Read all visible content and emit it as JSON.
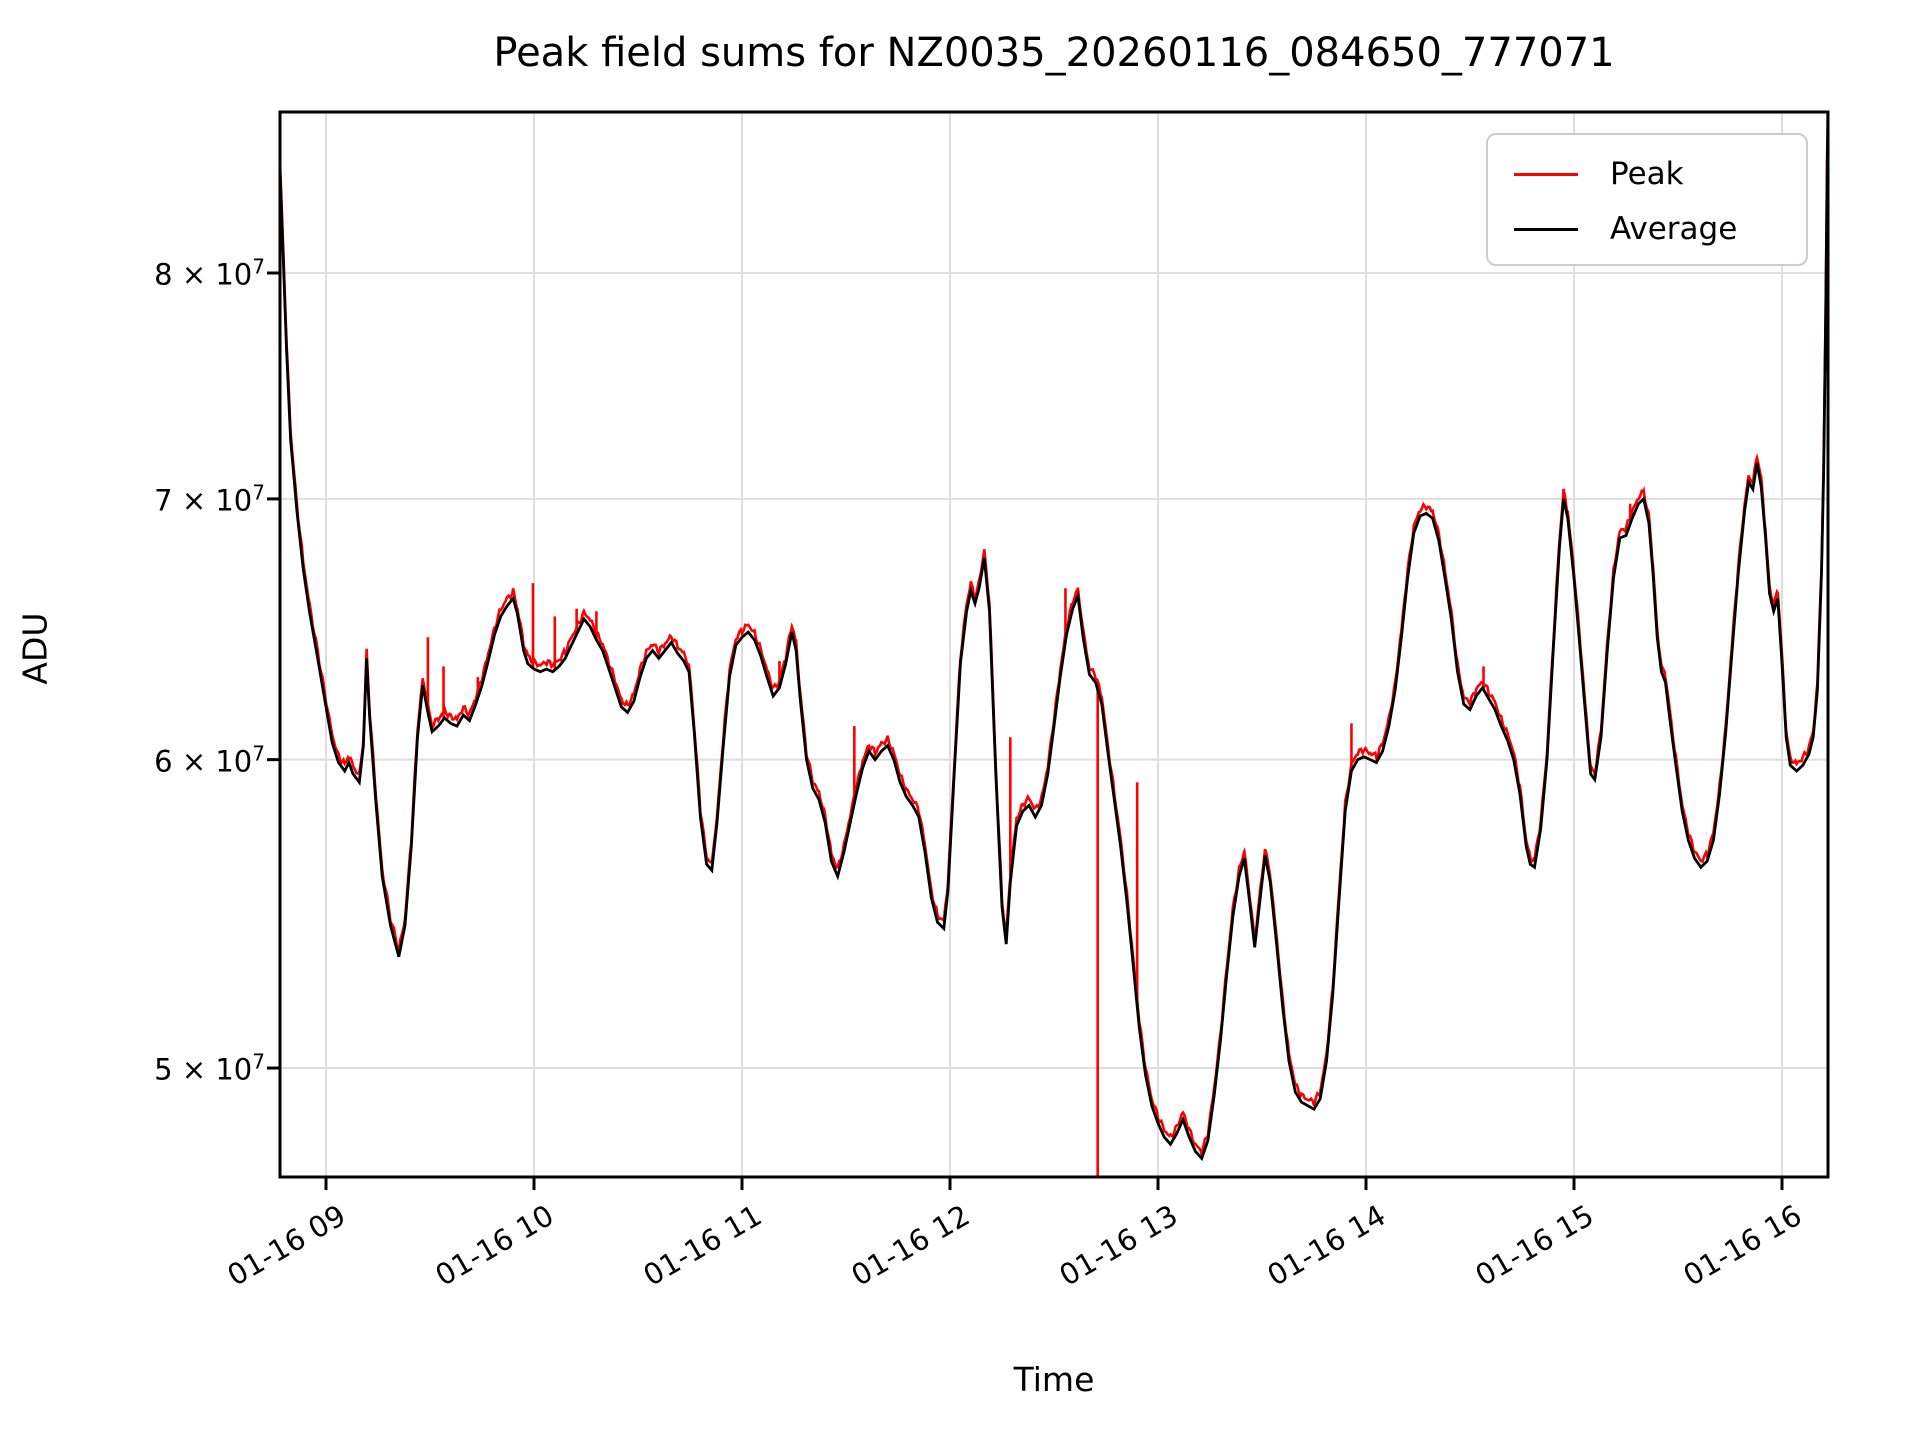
{
  "title": "Peak field sums for NZ0035_20260116_084650_777071",
  "xlabel": "Time",
  "ylabel": "ADU",
  "legend": {
    "entries": [
      {
        "label": "Peak",
        "color": "#ff0000"
      },
      {
        "label": "Average",
        "color": "#000000"
      }
    ]
  },
  "colors": {
    "peak": "#ff0000",
    "average": "#000000",
    "grid": "#dedede",
    "spine": "#000000",
    "legend_border": "#cccccc"
  },
  "chart_data": {
    "type": "line",
    "title": "Peak field sums for NZ0035_20260116_084650_777071",
    "xlabel": "Time",
    "ylabel": "ADU",
    "y_scale": "log",
    "ylim": [
      47200000,
      87900000
    ],
    "grid": true,
    "legend_position": "upper right",
    "x_tick_labels": [
      "01-16 09",
      "01-16 10",
      "01-16 11",
      "01-16 12",
      "01-16 13",
      "01-16 14",
      "01-16 15",
      "01-16 16"
    ],
    "x_tick_hours": [
      9,
      10,
      11,
      12,
      13,
      14,
      15,
      16
    ],
    "y_ticks": [
      {
        "mantissa": "5",
        "exp": "7",
        "value_e7": 5
      },
      {
        "mantissa": "6",
        "exp": "7",
        "value_e7": 6
      },
      {
        "mantissa": "7",
        "exp": "7",
        "value_e7": 7
      },
      {
        "mantissa": "8",
        "exp": "7",
        "value_e7": 8
      }
    ],
    "series": [
      {
        "name": "Peak",
        "color": "#ff0000",
        "note": "average plus small positive fuzz and glitch spikes"
      },
      {
        "name": "Average",
        "color": "#000000"
      }
    ],
    "average_points_t_hours_v_e7": [
      [
        8.78,
        8.48
      ],
      [
        8.79,
        8.2
      ],
      [
        8.81,
        7.65
      ],
      [
        8.83,
        7.25
      ],
      [
        8.86,
        6.95
      ],
      [
        8.89,
        6.72
      ],
      [
        8.92,
        6.55
      ],
      [
        8.96,
        6.37
      ],
      [
        9.0,
        6.19
      ],
      [
        9.03,
        6.06
      ],
      [
        9.06,
        5.99
      ],
      [
        9.09,
        5.96
      ],
      [
        9.11,
        5.99
      ],
      [
        9.13,
        5.95
      ],
      [
        9.16,
        5.92
      ],
      [
        9.18,
        6.05
      ],
      [
        9.195,
        6.37
      ],
      [
        9.21,
        6.15
      ],
      [
        9.24,
        5.85
      ],
      [
        9.27,
        5.6
      ],
      [
        9.31,
        5.44
      ],
      [
        9.35,
        5.34
      ],
      [
        9.38,
        5.44
      ],
      [
        9.41,
        5.7
      ],
      [
        9.44,
        6.08
      ],
      [
        9.465,
        6.27
      ],
      [
        9.49,
        6.17
      ],
      [
        9.51,
        6.1
      ],
      [
        9.54,
        6.12
      ],
      [
        9.57,
        6.15
      ],
      [
        9.6,
        6.13
      ],
      [
        9.63,
        6.12
      ],
      [
        9.66,
        6.16
      ],
      [
        9.69,
        6.14
      ],
      [
        9.72,
        6.2
      ],
      [
        9.75,
        6.27
      ],
      [
        9.78,
        6.36
      ],
      [
        9.81,
        6.46
      ],
      [
        9.84,
        6.53
      ],
      [
        9.87,
        6.57
      ],
      [
        9.9,
        6.6
      ],
      [
        9.92,
        6.54
      ],
      [
        9.95,
        6.4
      ],
      [
        9.97,
        6.35
      ],
      [
        10.0,
        6.33
      ],
      [
        10.03,
        6.32
      ],
      [
        10.06,
        6.33
      ],
      [
        10.09,
        6.32
      ],
      [
        10.12,
        6.34
      ],
      [
        10.15,
        6.37
      ],
      [
        10.18,
        6.42
      ],
      [
        10.21,
        6.47
      ],
      [
        10.24,
        6.52
      ],
      [
        10.27,
        6.49
      ],
      [
        10.3,
        6.44
      ],
      [
        10.33,
        6.4
      ],
      [
        10.36,
        6.33
      ],
      [
        10.39,
        6.26
      ],
      [
        10.42,
        6.19
      ],
      [
        10.45,
        6.17
      ],
      [
        10.48,
        6.21
      ],
      [
        10.51,
        6.3
      ],
      [
        10.54,
        6.37
      ],
      [
        10.57,
        6.4
      ],
      [
        10.6,
        6.37
      ],
      [
        10.63,
        6.4
      ],
      [
        10.66,
        6.43
      ],
      [
        10.69,
        6.39
      ],
      [
        10.72,
        6.36
      ],
      [
        10.745,
        6.32
      ],
      [
        10.77,
        6.1
      ],
      [
        10.8,
        5.8
      ],
      [
        10.83,
        5.64
      ],
      [
        10.855,
        5.62
      ],
      [
        10.88,
        5.78
      ],
      [
        10.91,
        6.05
      ],
      [
        10.94,
        6.3
      ],
      [
        10.97,
        6.42
      ],
      [
        11.0,
        6.45
      ],
      [
        11.03,
        6.47
      ],
      [
        11.06,
        6.44
      ],
      [
        11.09,
        6.38
      ],
      [
        11.12,
        6.3
      ],
      [
        11.15,
        6.23
      ],
      [
        11.18,
        6.26
      ],
      [
        11.21,
        6.35
      ],
      [
        11.24,
        6.47
      ],
      [
        11.26,
        6.4
      ],
      [
        11.28,
        6.22
      ],
      [
        11.31,
        6.0
      ],
      [
        11.34,
        5.9
      ],
      [
        11.37,
        5.86
      ],
      [
        11.4,
        5.78
      ],
      [
        11.43,
        5.65
      ],
      [
        11.46,
        5.6
      ],
      [
        11.49,
        5.68
      ],
      [
        11.52,
        5.78
      ],
      [
        11.55,
        5.88
      ],
      [
        11.58,
        5.97
      ],
      [
        11.61,
        6.03
      ],
      [
        11.64,
        6.0
      ],
      [
        11.67,
        6.03
      ],
      [
        11.7,
        6.05
      ],
      [
        11.73,
        6.0
      ],
      [
        11.76,
        5.92
      ],
      [
        11.79,
        5.87
      ],
      [
        11.82,
        5.84
      ],
      [
        11.85,
        5.8
      ],
      [
        11.88,
        5.68
      ],
      [
        11.91,
        5.53
      ],
      [
        11.94,
        5.45
      ],
      [
        11.97,
        5.43
      ],
      [
        11.99,
        5.55
      ],
      [
        12.02,
        5.95
      ],
      [
        12.05,
        6.35
      ],
      [
        12.08,
        6.55
      ],
      [
        12.1,
        6.63
      ],
      [
        12.12,
        6.58
      ],
      [
        12.14,
        6.64
      ],
      [
        12.165,
        6.76
      ],
      [
        12.19,
        6.55
      ],
      [
        12.22,
        5.95
      ],
      [
        12.25,
        5.5
      ],
      [
        12.27,
        5.38
      ],
      [
        12.29,
        5.58
      ],
      [
        12.32,
        5.77
      ],
      [
        12.35,
        5.82
      ],
      [
        12.38,
        5.84
      ],
      [
        12.41,
        5.8
      ],
      [
        12.44,
        5.84
      ],
      [
        12.47,
        5.95
      ],
      [
        12.5,
        6.12
      ],
      [
        12.53,
        6.3
      ],
      [
        12.56,
        6.46
      ],
      [
        12.59,
        6.56
      ],
      [
        12.615,
        6.61
      ],
      [
        12.64,
        6.45
      ],
      [
        12.67,
        6.31
      ],
      [
        12.7,
        6.28
      ],
      [
        12.73,
        6.2
      ],
      [
        12.76,
        6.02
      ],
      [
        12.79,
        5.86
      ],
      [
        12.82,
        5.7
      ],
      [
        12.85,
        5.52
      ],
      [
        12.88,
        5.32
      ],
      [
        12.91,
        5.12
      ],
      [
        12.94,
        4.98
      ],
      [
        12.97,
        4.89
      ],
      [
        13.0,
        4.84
      ],
      [
        13.03,
        4.8
      ],
      [
        13.06,
        4.78
      ],
      [
        13.09,
        4.81
      ],
      [
        13.12,
        4.85
      ],
      [
        13.15,
        4.8
      ],
      [
        13.18,
        4.76
      ],
      [
        13.21,
        4.74
      ],
      [
        13.24,
        4.79
      ],
      [
        13.27,
        4.92
      ],
      [
        13.3,
        5.08
      ],
      [
        13.33,
        5.28
      ],
      [
        13.36,
        5.47
      ],
      [
        13.39,
        5.6
      ],
      [
        13.415,
        5.66
      ],
      [
        13.44,
        5.52
      ],
      [
        13.465,
        5.37
      ],
      [
        13.49,
        5.52
      ],
      [
        13.515,
        5.67
      ],
      [
        13.54,
        5.58
      ],
      [
        13.57,
        5.38
      ],
      [
        13.6,
        5.18
      ],
      [
        13.63,
        5.02
      ],
      [
        13.66,
        4.93
      ],
      [
        13.69,
        4.9
      ],
      [
        13.72,
        4.89
      ],
      [
        13.75,
        4.88
      ],
      [
        13.78,
        4.91
      ],
      [
        13.81,
        5.02
      ],
      [
        13.84,
        5.22
      ],
      [
        13.87,
        5.52
      ],
      [
        13.9,
        5.82
      ],
      [
        13.93,
        5.96
      ],
      [
        13.96,
        6.0
      ],
      [
        13.99,
        6.01
      ],
      [
        14.02,
        6.0
      ],
      [
        14.05,
        5.99
      ],
      [
        14.08,
        6.03
      ],
      [
        14.11,
        6.12
      ],
      [
        14.14,
        6.25
      ],
      [
        14.17,
        6.45
      ],
      [
        14.2,
        6.68
      ],
      [
        14.23,
        6.86
      ],
      [
        14.26,
        6.93
      ],
      [
        14.29,
        6.94
      ],
      [
        14.32,
        6.92
      ],
      [
        14.35,
        6.83
      ],
      [
        14.38,
        6.68
      ],
      [
        14.41,
        6.52
      ],
      [
        14.44,
        6.32
      ],
      [
        14.47,
        6.2
      ],
      [
        14.5,
        6.18
      ],
      [
        14.53,
        6.23
      ],
      [
        14.56,
        6.26
      ],
      [
        14.59,
        6.22
      ],
      [
        14.62,
        6.18
      ],
      [
        14.65,
        6.12
      ],
      [
        14.68,
        6.07
      ],
      [
        14.71,
        6.0
      ],
      [
        14.74,
        5.88
      ],
      [
        14.77,
        5.7
      ],
      [
        14.79,
        5.64
      ],
      [
        14.81,
        5.63
      ],
      [
        14.84,
        5.76
      ],
      [
        14.87,
        6.0
      ],
      [
        14.9,
        6.4
      ],
      [
        14.93,
        6.8
      ],
      [
        14.95,
        7.0
      ],
      [
        14.97,
        6.92
      ],
      [
        15.0,
        6.68
      ],
      [
        15.03,
        6.4
      ],
      [
        15.06,
        6.12
      ],
      [
        15.08,
        5.95
      ],
      [
        15.1,
        5.93
      ],
      [
        15.13,
        6.08
      ],
      [
        15.16,
        6.4
      ],
      [
        15.19,
        6.68
      ],
      [
        15.22,
        6.84
      ],
      [
        15.25,
        6.85
      ],
      [
        15.28,
        6.92
      ],
      [
        15.31,
        6.98
      ],
      [
        15.335,
        7.0
      ],
      [
        15.36,
        6.9
      ],
      [
        15.38,
        6.7
      ],
      [
        15.4,
        6.45
      ],
      [
        15.42,
        6.32
      ],
      [
        15.44,
        6.28
      ],
      [
        15.46,
        6.15
      ],
      [
        15.49,
        5.98
      ],
      [
        15.52,
        5.82
      ],
      [
        15.55,
        5.72
      ],
      [
        15.58,
        5.66
      ],
      [
        15.61,
        5.63
      ],
      [
        15.64,
        5.65
      ],
      [
        15.67,
        5.72
      ],
      [
        15.7,
        5.88
      ],
      [
        15.73,
        6.1
      ],
      [
        15.76,
        6.4
      ],
      [
        15.79,
        6.7
      ],
      [
        15.82,
        6.95
      ],
      [
        15.84,
        7.07
      ],
      [
        15.86,
        7.04
      ],
      [
        15.88,
        7.15
      ],
      [
        15.9,
        7.05
      ],
      [
        15.92,
        6.85
      ],
      [
        15.94,
        6.62
      ],
      [
        15.96,
        6.55
      ],
      [
        15.98,
        6.6
      ],
      [
        16.0,
        6.35
      ],
      [
        16.02,
        6.08
      ],
      [
        16.04,
        5.98
      ],
      [
        16.07,
        5.96
      ],
      [
        16.1,
        5.98
      ],
      [
        16.13,
        6.02
      ],
      [
        16.15,
        6.08
      ],
      [
        16.17,
        6.25
      ],
      [
        16.19,
        6.7
      ],
      [
        16.2,
        7.1
      ],
      [
        16.21,
        7.8
      ],
      [
        16.22,
        8.8
      ]
    ],
    "peak_up_spikes_t_v_e7": [
      [
        9.49,
        6.45
      ],
      [
        9.565,
        6.34
      ],
      [
        9.73,
        6.3
      ],
      [
        9.995,
        6.66
      ],
      [
        10.1,
        6.53
      ],
      [
        10.205,
        6.56
      ],
      [
        10.3,
        6.55
      ],
      [
        11.18,
        6.36
      ],
      [
        11.54,
        6.12
      ],
      [
        12.29,
        6.08
      ],
      [
        12.555,
        6.64
      ],
      [
        12.9,
        5.92
      ],
      [
        13.93,
        6.13
      ],
      [
        14.565,
        6.34
      ],
      [
        15.27,
        6.98
      ]
    ],
    "peak_down_spikes_t_v_e7": [
      [
        12.71,
        4.5
      ]
    ]
  }
}
